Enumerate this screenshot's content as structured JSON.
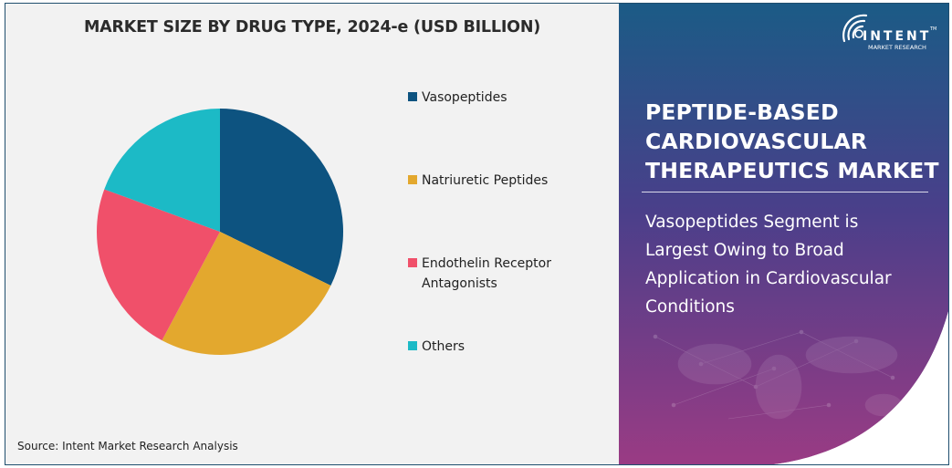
{
  "chart_data": {
    "type": "pie",
    "title": "MARKET SIZE BY DRUG TYPE, 2024-e (USD BILLION)",
    "unit_note": "No numeric labels shown; shares estimated from slice angles (%)",
    "categories": [
      "Vasopeptides",
      "Natriuretic Peptides",
      "Endothelin Receptor Antagonists",
      "Others"
    ],
    "values": [
      32.2,
      25.6,
      22.8,
      19.4
    ],
    "colors": [
      "#0d5380",
      "#e3a82e",
      "#f0506a",
      "#1cbac6"
    ],
    "start_angle_deg": 0,
    "direction": "clockwise",
    "legend_position": "right"
  },
  "chart": {
    "title": "MARKET SIZE BY DRUG TYPE, 2024-e (USD BILLION)",
    "legend": [
      {
        "label_line1": "Vasopeptides",
        "label_line2": "",
        "color": "#0d5380"
      },
      {
        "label_line1": "Natriuretic Peptides",
        "label_line2": "",
        "color": "#e3a82e"
      },
      {
        "label_line1": "Endothelin Receptor",
        "label_line2": "Antagonists",
        "color": "#f0506a"
      },
      {
        "label_line1": "Others",
        "label_line2": "",
        "color": "#1cbac6"
      }
    ],
    "source": "Source: Intent Market Research Analysis"
  },
  "panel": {
    "logo_main": "INTENT",
    "logo_sub": "MARKET RESEARCH",
    "logo_tm": "TM",
    "headline_lines": [
      "PEPTIDE-BASED",
      "CARDIOVASCULAR",
      "THERAPEUTICS MARKET"
    ],
    "subtext_lines": [
      "Vasopeptides Segment is",
      "Largest Owing to Broad",
      "Application in Cardiovascular",
      "Conditions"
    ],
    "gradient_top": "#1b5b86",
    "gradient_mid": "#4a3f8a",
    "gradient_bottom": "#9a3b84"
  }
}
